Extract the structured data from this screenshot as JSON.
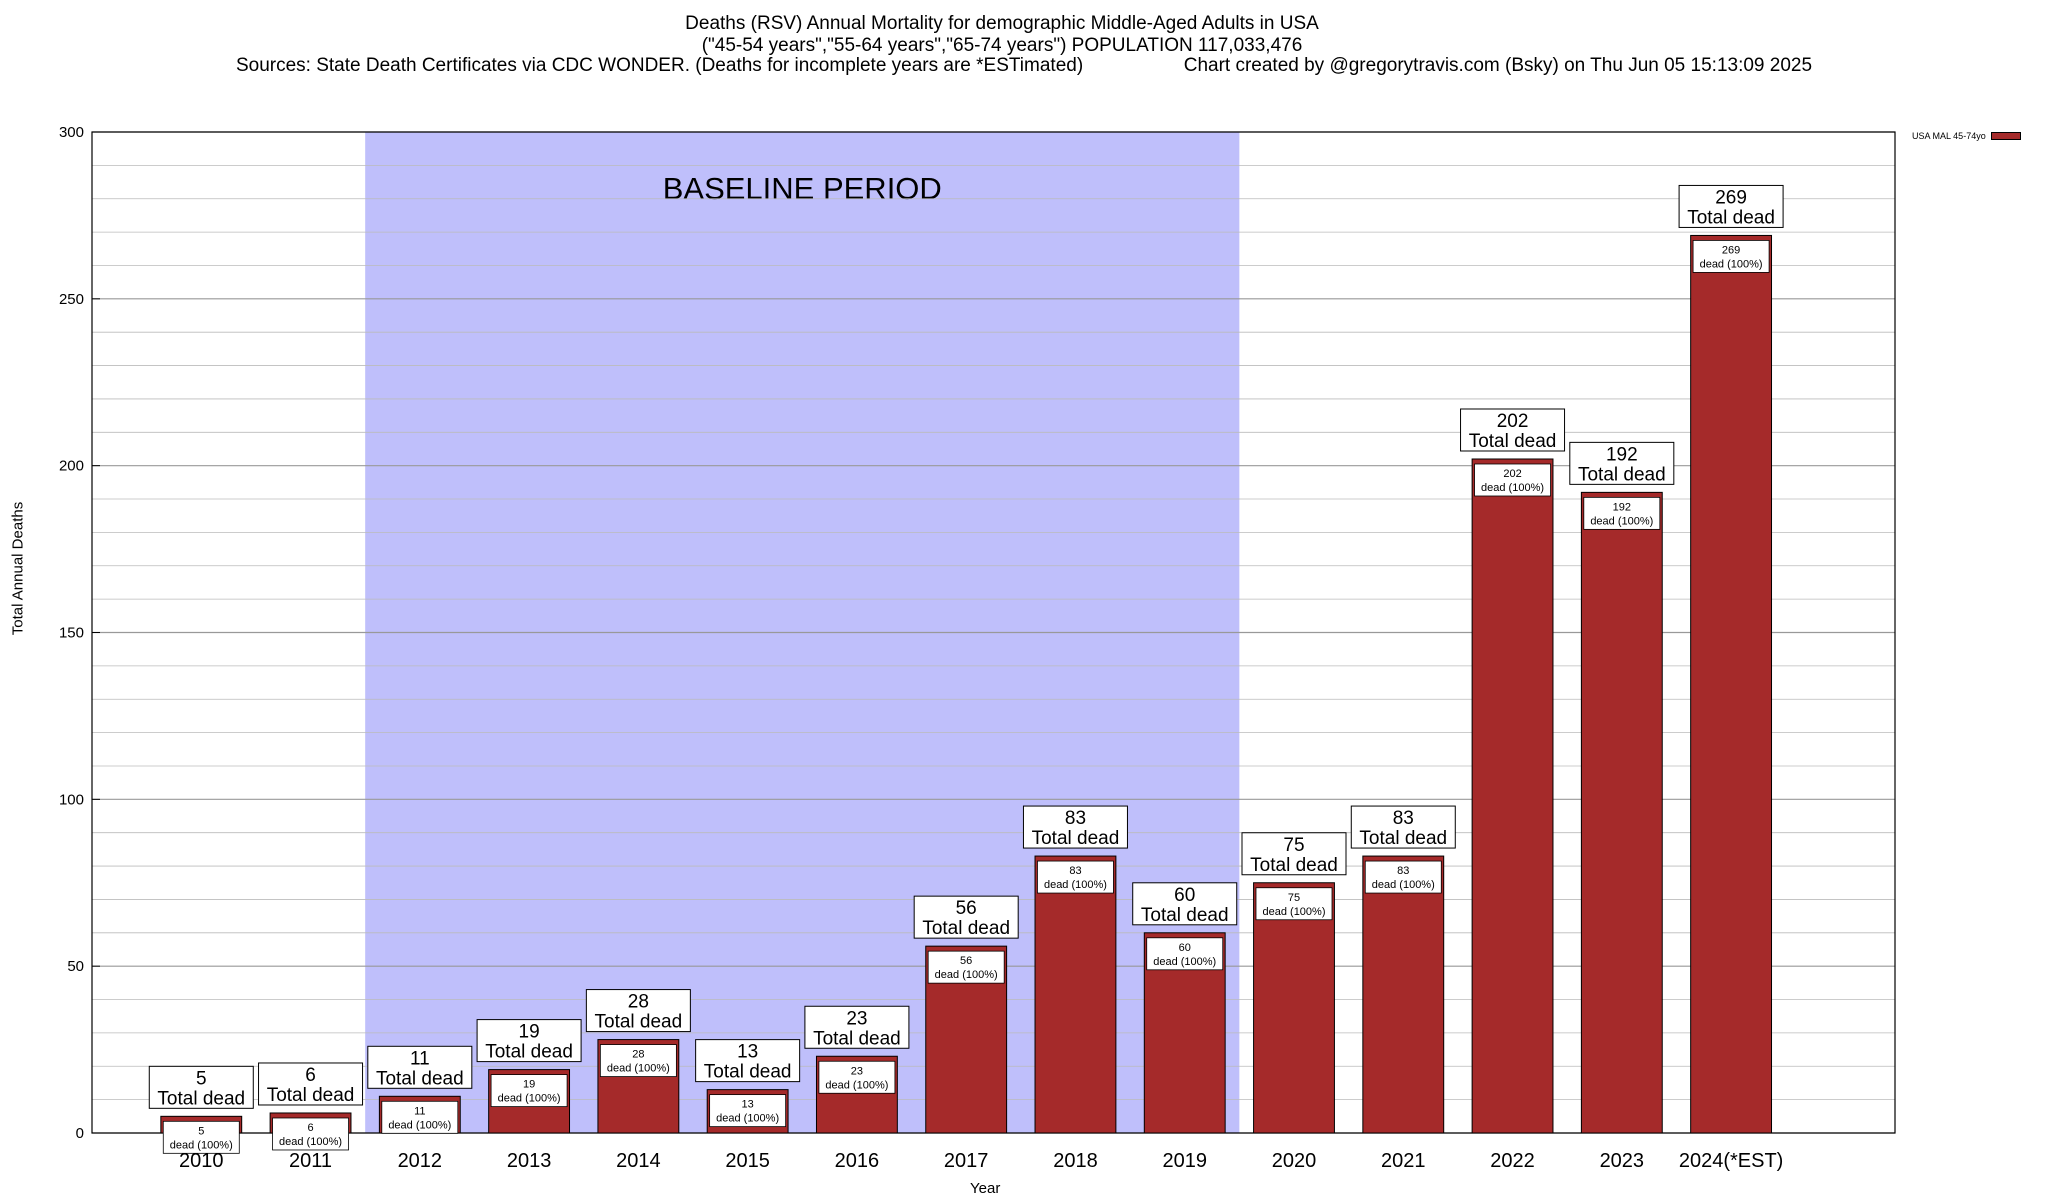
{
  "header": {
    "title_line1": "Deaths (RSV) Annual Mortality for demographic Middle-Aged Adults in USA",
    "title_line2": "(\"45-54 years\",\"55-64 years\",\"65-74 years\") POPULATION 117,033,476",
    "sources": "Sources: State Death Certificates via CDC WONDER. (Deaths for incomplete years are *ESTimated)",
    "credit": "Chart created by @gregorytravis.com (Bsky) on Thu Jun 05 15:13:09 2025"
  },
  "chart_data": {
    "type": "bar",
    "xlabel": "Year",
    "ylabel": "Total Annual Deaths",
    "ylim": [
      0,
      300
    ],
    "yticks": [
      0,
      50,
      100,
      150,
      200,
      250,
      300
    ],
    "grid": true,
    "legend_position": "top-right",
    "baseline_label": "BASELINE PERIOD",
    "baseline_range": [
      "2012",
      "2019"
    ],
    "categories": [
      "2010",
      "2011",
      "2012",
      "2013",
      "2014",
      "2015",
      "2016",
      "2017",
      "2018",
      "2019",
      "2020",
      "2021",
      "2022",
      "2023",
      "2024(*EST)"
    ],
    "series": [
      {
        "name": "USA MAL 45-74yo",
        "color": "#a52a2a",
        "values": [
          5,
          6,
          11,
          19,
          28,
          13,
          23,
          56,
          83,
          60,
          75,
          83,
          202,
          192,
          269
        ]
      }
    ],
    "total_label": "Total dead",
    "inner_label": "dead (100%)"
  }
}
